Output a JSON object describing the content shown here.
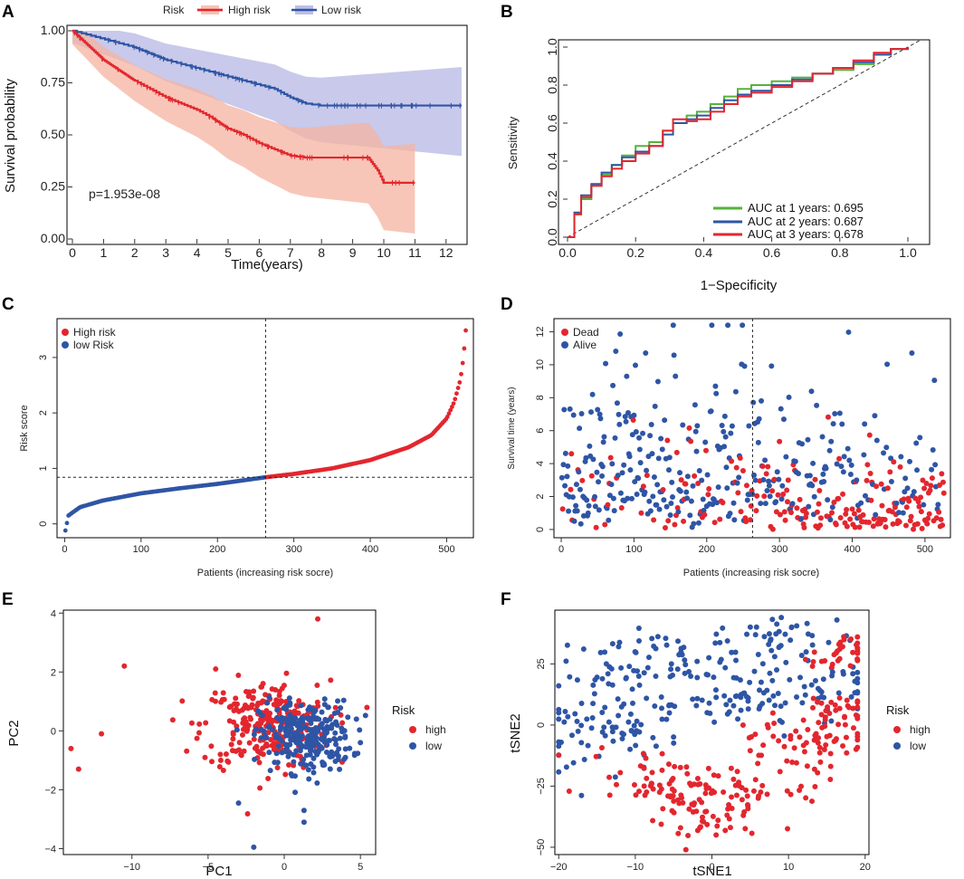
{
  "colors": {
    "high": "#e3262e",
    "low": "#2e55a5",
    "auc1": "#56b33a",
    "auc2": "#2e55a5",
    "auc3": "#e3262e"
  },
  "chart_data": [
    {
      "panel": "A",
      "type": "line",
      "legend_title": "Risk",
      "legend_entries": [
        "High risk",
        "Low risk"
      ],
      "xlabel": "Time(years)",
      "ylabel": "Survival probability",
      "xlim": [
        0,
        12.5
      ],
      "ylim": [
        0,
        1
      ],
      "xticks": [
        "0",
        "1",
        "2",
        "3",
        "4",
        "5",
        "6",
        "7",
        "8",
        "9",
        "10",
        "11",
        "12"
      ],
      "yticks": [
        "0.00",
        "0.25",
        "0.50",
        "0.75",
        "1.00"
      ],
      "annotation": "p=1.953e-08",
      "series": [
        {
          "name": "High risk",
          "x": [
            0,
            0.5,
            1,
            1.5,
            2,
            2.5,
            3,
            3.5,
            4,
            4.5,
            5,
            5.5,
            6,
            6.5,
            7,
            7.5,
            8,
            8.5,
            9,
            9.5,
            9.8,
            10,
            10.5,
            11
          ],
          "y": [
            1.0,
            0.93,
            0.86,
            0.81,
            0.76,
            0.72,
            0.68,
            0.65,
            0.62,
            0.58,
            0.53,
            0.5,
            0.46,
            0.43,
            0.4,
            0.39,
            0.39,
            0.39,
            0.39,
            0.39,
            0.33,
            0.27,
            0.27,
            0.27
          ]
        },
        {
          "name": "Low risk",
          "x": [
            0,
            0.5,
            1,
            1.5,
            2,
            2.5,
            3,
            3.5,
            4,
            4.5,
            5,
            5.5,
            6,
            6.5,
            7,
            7.5,
            8,
            9,
            10,
            11,
            12,
            12.5
          ],
          "y": [
            1.0,
            0.98,
            0.96,
            0.94,
            0.92,
            0.89,
            0.86,
            0.84,
            0.82,
            0.8,
            0.78,
            0.76,
            0.74,
            0.72,
            0.68,
            0.65,
            0.64,
            0.64,
            0.64,
            0.64,
            0.64,
            0.64
          ]
        }
      ]
    },
    {
      "panel": "B",
      "type": "line",
      "xlabel": "1−Specificity",
      "ylabel": "Sensitivity",
      "xlim": [
        0,
        1
      ],
      "ylim": [
        0,
        1
      ],
      "xticks": [
        "0.0",
        "0.2",
        "0.4",
        "0.6",
        "0.8",
        "1.0"
      ],
      "yticks": [
        "0.0",
        "0.2",
        "0.4",
        "0.6",
        "0.8",
        "1.0"
      ],
      "series": [
        {
          "name": "AUC at 1 years: 0.695",
          "x": [
            0,
            0.02,
            0.04,
            0.07,
            0.1,
            0.13,
            0.16,
            0.2,
            0.24,
            0.28,
            0.31,
            0.35,
            0.38,
            0.42,
            0.46,
            0.5,
            0.54,
            0.6,
            0.66,
            0.72,
            0.78,
            0.84,
            0.9,
            0.95,
            1
          ],
          "y": [
            0,
            0.12,
            0.2,
            0.27,
            0.33,
            0.38,
            0.43,
            0.48,
            0.5,
            0.56,
            0.6,
            0.64,
            0.66,
            0.7,
            0.74,
            0.78,
            0.8,
            0.82,
            0.84,
            0.86,
            0.88,
            0.91,
            0.96,
            0.99,
            1
          ]
        },
        {
          "name": "AUC at 2 years: 0.687",
          "x": [
            0,
            0.02,
            0.04,
            0.07,
            0.1,
            0.13,
            0.16,
            0.2,
            0.24,
            0.28,
            0.31,
            0.35,
            0.38,
            0.42,
            0.46,
            0.5,
            0.54,
            0.6,
            0.66,
            0.72,
            0.78,
            0.84,
            0.9,
            0.95,
            1
          ],
          "y": [
            0,
            0.13,
            0.22,
            0.28,
            0.34,
            0.38,
            0.42,
            0.45,
            0.48,
            0.54,
            0.6,
            0.62,
            0.64,
            0.68,
            0.72,
            0.75,
            0.77,
            0.8,
            0.83,
            0.86,
            0.89,
            0.92,
            0.96,
            0.99,
            1
          ]
        },
        {
          "name": "AUC at 3 years: 0.678",
          "x": [
            0,
            0.02,
            0.04,
            0.07,
            0.1,
            0.13,
            0.16,
            0.2,
            0.24,
            0.28,
            0.31,
            0.35,
            0.38,
            0.42,
            0.46,
            0.5,
            0.54,
            0.6,
            0.66,
            0.72,
            0.78,
            0.84,
            0.9,
            0.95,
            1
          ],
          "y": [
            0,
            0.12,
            0.21,
            0.27,
            0.32,
            0.36,
            0.4,
            0.44,
            0.48,
            0.56,
            0.62,
            0.61,
            0.62,
            0.66,
            0.7,
            0.74,
            0.76,
            0.79,
            0.82,
            0.86,
            0.89,
            0.93,
            0.97,
            0.99,
            1
          ]
        }
      ],
      "legend_entries": [
        "AUC at 1 years: 0.695",
        "AUC at 2 years: 0.687",
        "AUC at 3 years: 0.678"
      ]
    },
    {
      "panel": "C",
      "type": "scatter",
      "xlabel": "Patients (increasing risk socre)",
      "ylabel": "Risk score",
      "xlim": [
        -10,
        535
      ],
      "ylim": [
        -0.25,
        3.7
      ],
      "xticks": [
        "0",
        "100",
        "200",
        "300",
        "400",
        "500"
      ],
      "yticks": [
        "0",
        "1",
        "2",
        "3"
      ],
      "cutoff_x": 263,
      "cutoff_y": 0.84,
      "n_patients": 526,
      "legend_entries": [
        "High risk",
        "low Risk"
      ],
      "curve": {
        "x": [
          1,
          5,
          20,
          50,
          100,
          150,
          200,
          263,
          300,
          350,
          400,
          450,
          480,
          500,
          510,
          518,
          522,
          526
        ],
        "y": [
          -0.12,
          0.15,
          0.3,
          0.42,
          0.55,
          0.64,
          0.72,
          0.84,
          0.9,
          1.0,
          1.15,
          1.38,
          1.6,
          1.9,
          2.2,
          2.6,
          3.0,
          3.65
        ]
      }
    },
    {
      "panel": "D",
      "type": "scatter",
      "xlabel": "Patients (increasing risk socre)",
      "ylabel": "Survival time (years)",
      "xlim": [
        -10,
        535
      ],
      "ylim": [
        -0.5,
        12.8
      ],
      "xticks": [
        "0",
        "100",
        "200",
        "300",
        "400",
        "500"
      ],
      "yticks": [
        "0",
        "2",
        "4",
        "6",
        "8",
        "10",
        "12"
      ],
      "cutoff_x": 263,
      "legend_entries": [
        "Dead",
        "Alive"
      ]
    },
    {
      "panel": "E",
      "type": "scatter",
      "xlabel": "PC1",
      "ylabel": "PC2",
      "xlim": [
        -14.5,
        6
      ],
      "ylim": [
        -4.2,
        4.1
      ],
      "xticks": [
        "−10",
        "−5",
        "0",
        "5"
      ],
      "yticks": [
        "−4",
        "−2",
        "0",
        "2",
        "4"
      ],
      "legend_title": "Risk",
      "legend_entries": [
        "high",
        "low"
      ],
      "outliers_high": [
        [
          -10.5,
          2.2
        ],
        [
          -13.5,
          -1.3
        ],
        [
          -14,
          -0.6
        ],
        [
          -12,
          -0.1
        ],
        [
          2.2,
          3.8
        ],
        [
          -4.5,
          2.1
        ]
      ],
      "outliers_low": [
        [
          -2,
          -3.95
        ],
        [
          1.3,
          -3.1
        ],
        [
          1.3,
          -2.7
        ],
        [
          -3,
          -2.45
        ],
        [
          5,
          -0.4
        ]
      ]
    },
    {
      "panel": "F",
      "type": "scatter",
      "xlabel": "tSNE1",
      "ylabel": "tSNE2",
      "xlim": [
        -20.5,
        20.5
      ],
      "ylim": [
        -53,
        47
      ],
      "xticks": [
        "−20",
        "−10",
        "0",
        "10",
        "20"
      ],
      "yticks": [
        "−50",
        "−25",
        "0",
        "25"
      ],
      "legend_title": "Risk",
      "legend_entries": [
        "high",
        "low"
      ]
    }
  ]
}
